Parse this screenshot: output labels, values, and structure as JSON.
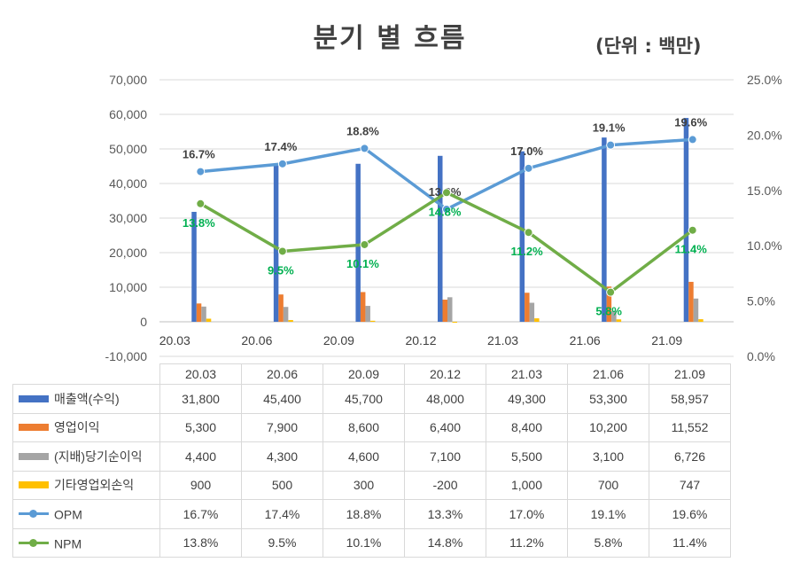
{
  "title": "분기 별 흐름",
  "unit_note": "(단위 : 백만)",
  "colors": {
    "revenue": "#4472c4",
    "operating_income": "#ed7d31",
    "net_income": "#a5a5a5",
    "non_operating": "#ffc000",
    "opm": "#5b9bd5",
    "npm": "#70ad47",
    "npm_label": "#00b050"
  },
  "chart_data": {
    "type": "bar",
    "title": "분기 별 흐름",
    "categories": [
      "20.03",
      "20.06",
      "20.09",
      "20.12",
      "21.03",
      "21.06",
      "21.09"
    ],
    "ylim": [
      -10000,
      70000
    ],
    "y_ticks": [
      "-10,000",
      "0",
      "10,000",
      "20,000",
      "30,000",
      "40,000",
      "50,000",
      "60,000",
      "70,000"
    ],
    "y2lim": [
      0,
      25
    ],
    "y2_ticks": [
      "0.0%",
      "5.0%",
      "10.0%",
      "15.0%",
      "20.0%",
      "25.0%"
    ],
    "grid": true,
    "series": [
      {
        "name": "매출액(수익)",
        "type": "bar",
        "axis": "left",
        "values": [
          31800,
          45400,
          45700,
          48000,
          49300,
          53300,
          58957
        ]
      },
      {
        "name": "영업이익",
        "type": "bar",
        "axis": "left",
        "values": [
          5300,
          7900,
          8600,
          6400,
          8400,
          10200,
          11552
        ]
      },
      {
        "name": "(지배)당기순이익",
        "type": "bar",
        "axis": "left",
        "values": [
          4400,
          4300,
          4600,
          7100,
          5500,
          3100,
          6726
        ]
      },
      {
        "name": "기타영업외손익",
        "type": "bar",
        "axis": "left",
        "values": [
          900,
          500,
          300,
          -200,
          1000,
          700,
          747
        ]
      },
      {
        "name": "OPM",
        "type": "line",
        "axis": "right",
        "values": [
          16.7,
          17.4,
          18.8,
          13.3,
          17.0,
          19.1,
          19.6
        ]
      },
      {
        "name": "NPM",
        "type": "line",
        "axis": "right",
        "values": [
          13.8,
          9.5,
          10.1,
          14.8,
          11.2,
          5.8,
          11.4
        ]
      }
    ]
  },
  "table": {
    "header": [
      "20.03",
      "20.06",
      "20.09",
      "20.12",
      "21.03",
      "21.06",
      "21.09"
    ],
    "rows": [
      {
        "label": "매출액(수익)",
        "key": "bar",
        "color": "#4472c4",
        "cells": [
          "31,800",
          "45,400",
          "45,700",
          "48,000",
          "49,300",
          "53,300",
          "58,957"
        ]
      },
      {
        "label": "영업이익",
        "key": "bar",
        "color": "#ed7d31",
        "cells": [
          "5,300",
          "7,900",
          "8,600",
          "6,400",
          "8,400",
          "10,200",
          "11,552"
        ]
      },
      {
        "label": "(지배)당기순이익",
        "key": "bar",
        "color": "#a5a5a5",
        "cells": [
          "4,400",
          "4,300",
          "4,600",
          "7,100",
          "5,500",
          "3,100",
          "6,726"
        ]
      },
      {
        "label": "기타영업외손익",
        "key": "bar",
        "color": "#ffc000",
        "cells": [
          "900",
          "500",
          "300",
          "-200",
          "1,000",
          "700",
          "747"
        ]
      },
      {
        "label": "OPM",
        "key": "line",
        "color": "#5b9bd5",
        "cells": [
          "16.7%",
          "17.4%",
          "18.8%",
          "13.3%",
          "17.0%",
          "19.1%",
          "19.6%"
        ]
      },
      {
        "label": "NPM",
        "key": "line",
        "color": "#70ad47",
        "cells": [
          "13.8%",
          "9.5%",
          "10.1%",
          "14.8%",
          "11.2%",
          "5.8%",
          "11.4%"
        ]
      }
    ]
  }
}
